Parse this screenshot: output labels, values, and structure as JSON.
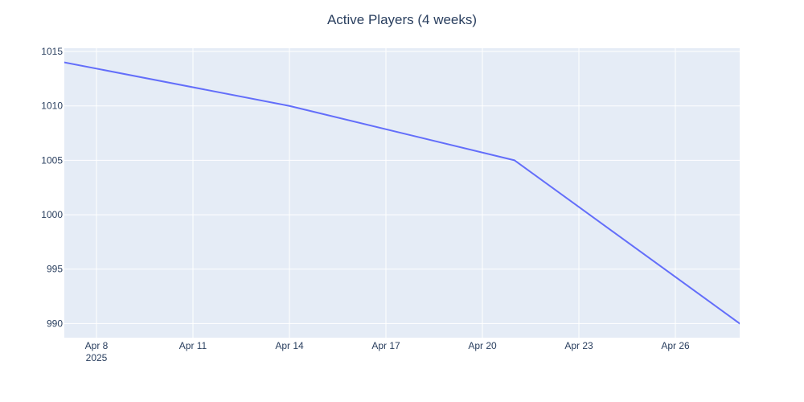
{
  "chart_data": {
    "type": "line",
    "title": "Active Players (4 weeks)",
    "xlabel": "",
    "ylabel": "",
    "x": [
      "2025-04-07",
      "2025-04-14",
      "2025-04-21",
      "2025-04-28"
    ],
    "series": [
      {
        "values": [
          1014,
          1010,
          1005,
          990
        ],
        "color": "#636efa"
      }
    ],
    "xlim": [
      "2025-04-07",
      "2025-04-28"
    ],
    "ylim": [
      988.7,
      1015.3
    ],
    "x_ticks": [
      {
        "date": "2025-04-08",
        "label": "Apr 8",
        "sublabel": "2025"
      },
      {
        "date": "2025-04-11",
        "label": "Apr 11",
        "sublabel": ""
      },
      {
        "date": "2025-04-14",
        "label": "Apr 14",
        "sublabel": ""
      },
      {
        "date": "2025-04-17",
        "label": "Apr 17",
        "sublabel": ""
      },
      {
        "date": "2025-04-20",
        "label": "Apr 20",
        "sublabel": ""
      },
      {
        "date": "2025-04-23",
        "label": "Apr 23",
        "sublabel": ""
      },
      {
        "date": "2025-04-26",
        "label": "Apr 26",
        "sublabel": ""
      }
    ],
    "y_ticks": [
      990,
      995,
      1000,
      1005,
      1010,
      1015
    ],
    "grid": true,
    "colors": {
      "plot_bg": "#e5ecf6",
      "grid": "#ffffff",
      "text": "#2a3f5f"
    }
  }
}
